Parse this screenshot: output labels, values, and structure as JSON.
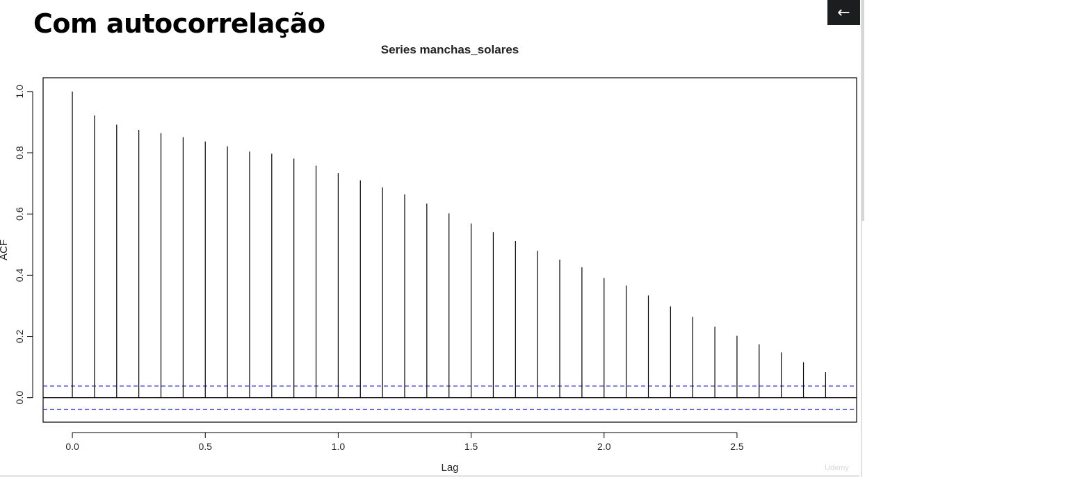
{
  "slide": {
    "title": "Com autocorrelação",
    "back_icon": "arrow-left-icon",
    "back_glyph": "←",
    "watermark": "Udemy"
  },
  "chart_data": {
    "type": "bar",
    "subtype": "acf-correlogram",
    "title": "Series  manchas_solares",
    "xlabel": "Lag",
    "ylabel": "ACF",
    "xlim": [
      -0.11,
      2.95
    ],
    "ylim": [
      -0.08,
      1.045
    ],
    "x_ticks": [
      0.0,
      0.5,
      1.0,
      1.5,
      2.0,
      2.5
    ],
    "x_tick_labels": [
      "0.0",
      "0.5",
      "1.0",
      "1.5",
      "2.0",
      "2.5"
    ],
    "y_ticks": [
      0.0,
      0.2,
      0.4,
      0.6,
      0.8,
      1.0
    ],
    "y_tick_labels": [
      "0.0",
      "0.2",
      "0.4",
      "0.6",
      "0.8",
      "1.0"
    ],
    "lags": [
      0.0,
      0.0833,
      0.1667,
      0.25,
      0.3333,
      0.4167,
      0.5,
      0.5833,
      0.6667,
      0.75,
      0.8333,
      0.9167,
      1.0,
      1.0833,
      1.1667,
      1.25,
      1.3333,
      1.4167,
      1.5,
      1.5833,
      1.6667,
      1.75,
      1.8333,
      1.9167,
      2.0,
      2.0833,
      2.1667,
      2.25,
      2.3333,
      2.4167,
      2.5,
      2.5833,
      2.6667,
      2.75,
      2.8333
    ],
    "acf": [
      1.0,
      0.922,
      0.892,
      0.875,
      0.864,
      0.851,
      0.837,
      0.821,
      0.804,
      0.797,
      0.781,
      0.758,
      0.734,
      0.71,
      0.687,
      0.664,
      0.634,
      0.602,
      0.569,
      0.541,
      0.512,
      0.48,
      0.451,
      0.426,
      0.391,
      0.366,
      0.334,
      0.298,
      0.264,
      0.232,
      0.202,
      0.174,
      0.148,
      0.116,
      0.083
    ],
    "conf_limits": [
      0.038,
      -0.038
    ],
    "colors": {
      "spike": "#000000",
      "zero_line": "#000000",
      "conf_line": "#3a3ad8",
      "axis": "#000000",
      "text": "#222222"
    }
  }
}
